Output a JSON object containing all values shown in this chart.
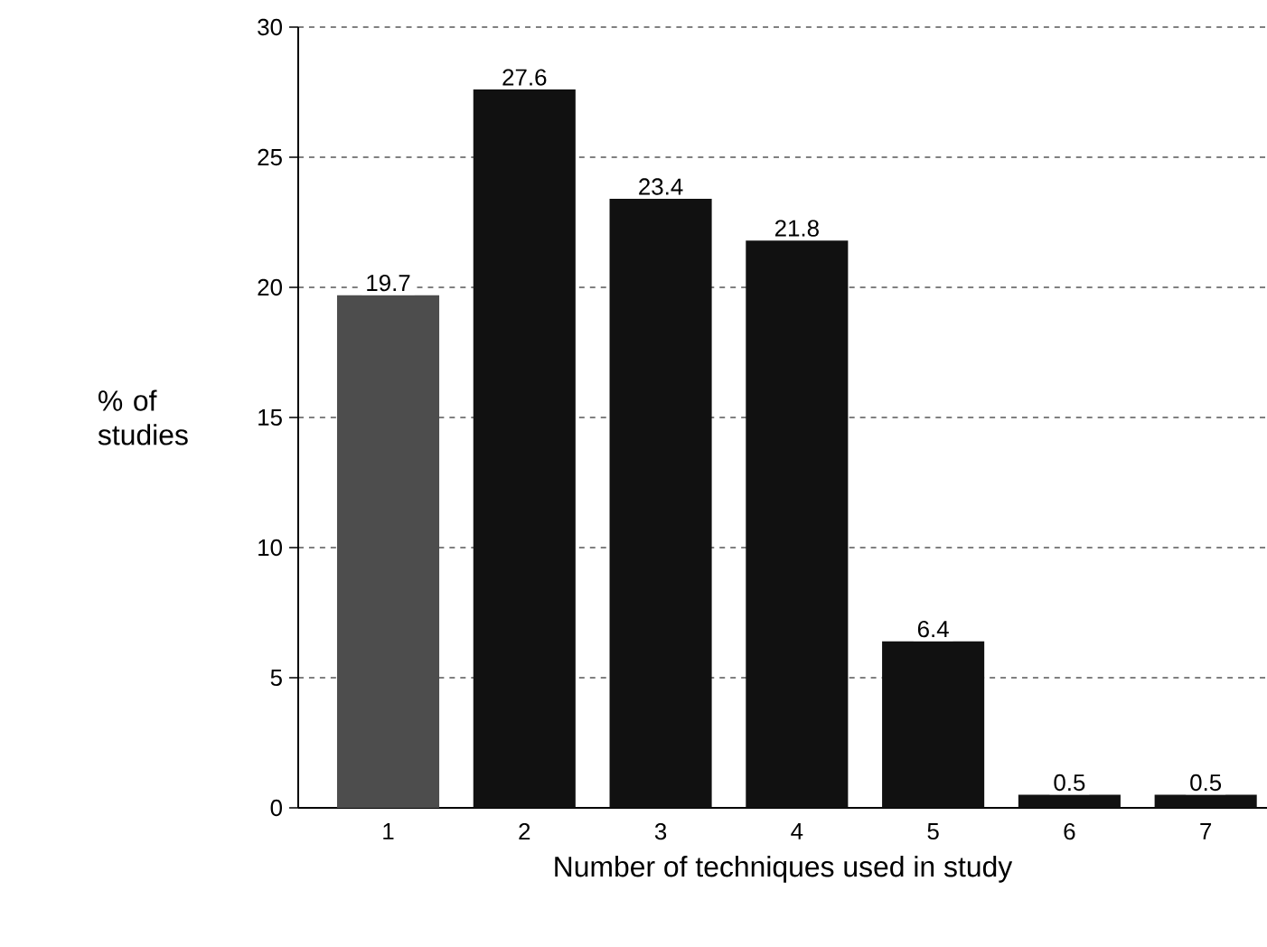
{
  "chart_data": {
    "type": "bar",
    "xlabel": "Number of techniques used in study",
    "ylabel": "% of studies",
    "categories": [
      "1",
      "2",
      "3",
      "4",
      "5",
      "6",
      "7"
    ],
    "values": [
      19.7,
      27.6,
      23.4,
      21.8,
      6.4,
      0.5,
      0.5
    ],
    "colors": [
      "#4d4d4d",
      "#111111",
      "#111111",
      "#111111",
      "#111111",
      "#111111",
      "#111111"
    ],
    "ylim": [
      0,
      30
    ],
    "yticks": [
      0,
      5,
      10,
      15,
      20,
      25,
      30
    ],
    "grid": "y",
    "data_labels": true
  }
}
